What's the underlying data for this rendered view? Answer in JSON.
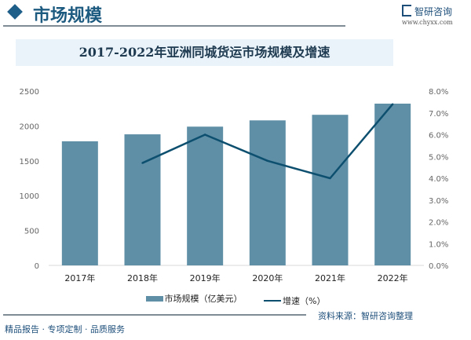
{
  "header": {
    "title": "市场规模",
    "logo_text": "智研咨询",
    "logo_url": "www.chyxx.com"
  },
  "footer": {
    "source": "资料来源：智研咨询整理",
    "slogan": "精品报告 · 专项定制 · 品质服务"
  },
  "colors": {
    "bar": "#5f8fa7",
    "line": "#0d4f6e",
    "title_bg": "#eaf3fa"
  },
  "chart_data": {
    "type": "bar+line",
    "title": "2017-2022年亚洲同城货运市场规模及增速",
    "categories": [
      "2017年",
      "2018年",
      "2019年",
      "2020年",
      "2021年",
      "2022年"
    ],
    "series": [
      {
        "name": "市场规模（亿美元）",
        "type": "bar",
        "axis": "left",
        "values": [
          1780,
          1880,
          1990,
          2080,
          2160,
          2320
        ]
      },
      {
        "name": "增速（%）",
        "type": "line",
        "axis": "right",
        "values": [
          null,
          4.7,
          6.0,
          4.8,
          4.0,
          7.4
        ]
      }
    ],
    "y_left": {
      "range": [
        0,
        2500
      ],
      "ticks": [
        "0",
        "500",
        "1000",
        "1500",
        "2000",
        "2500"
      ]
    },
    "y_right": {
      "range": [
        0,
        8
      ],
      "ticks": [
        "0.0%",
        "1.0%",
        "2.0%",
        "3.0%",
        "4.0%",
        "5.0%",
        "6.0%",
        "7.0%",
        "8.0%"
      ]
    },
    "grid": false,
    "legend": "bottom"
  }
}
